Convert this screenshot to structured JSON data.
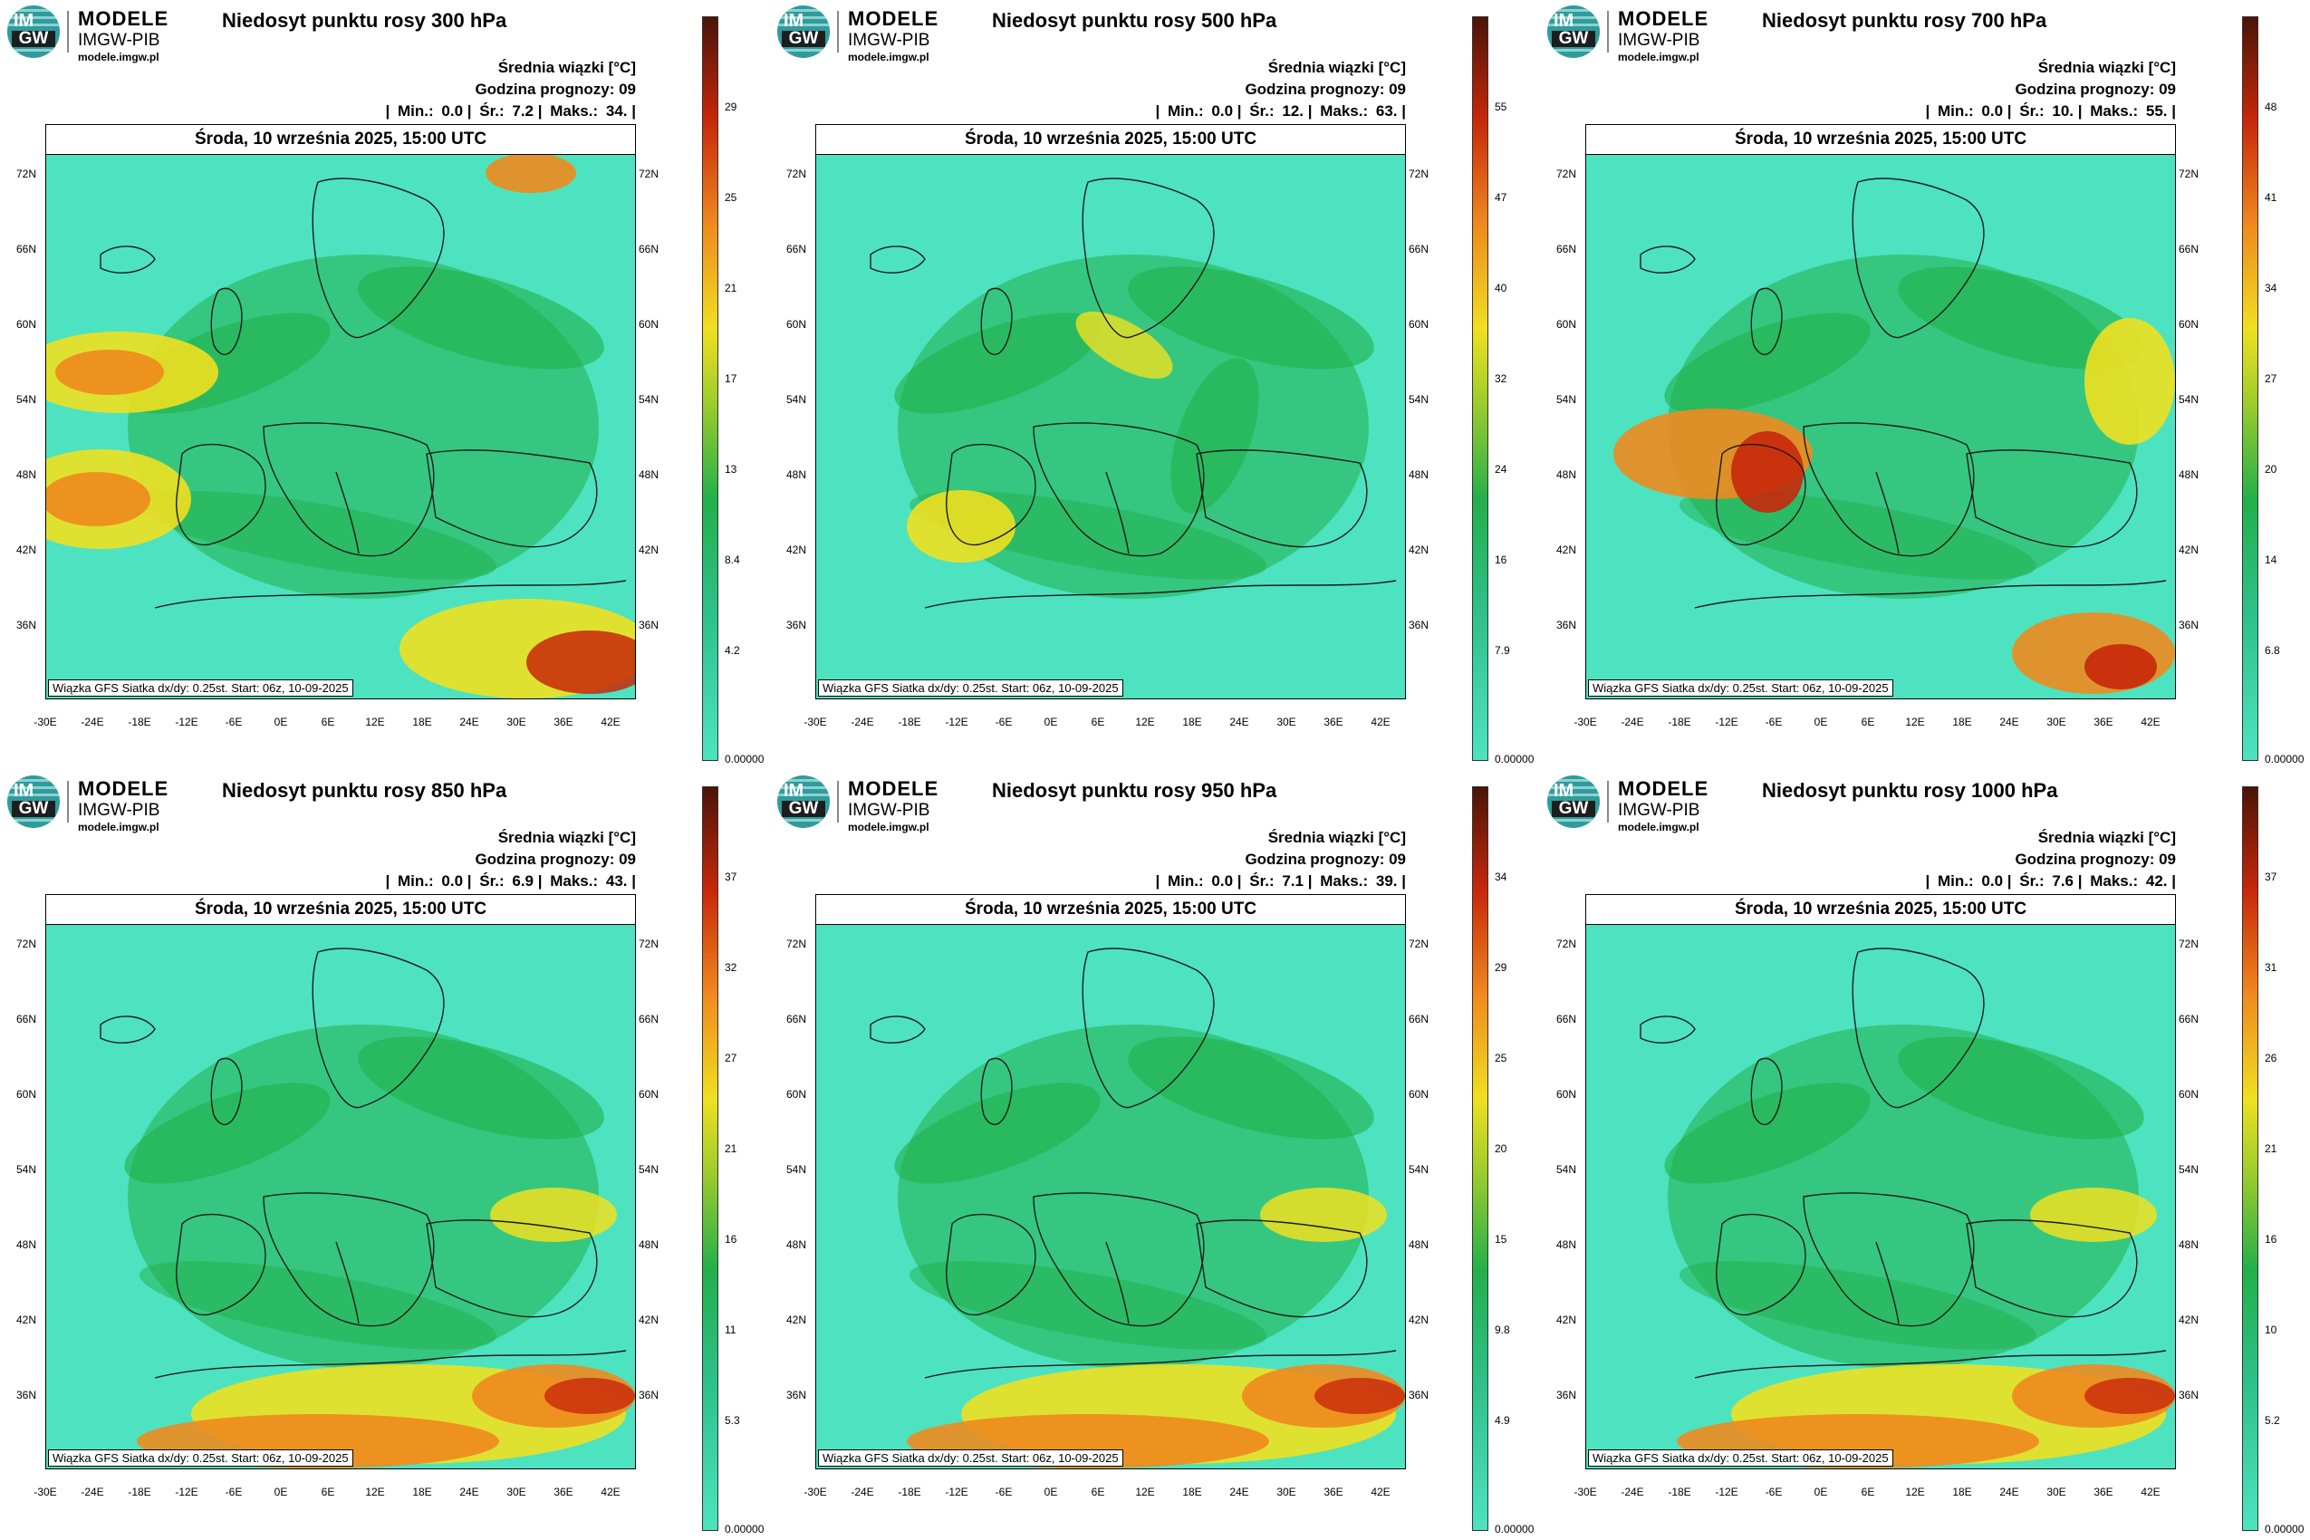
{
  "logo": {
    "line1": "MODELE",
    "line2": "IMGW-PIB",
    "line3": "modele.imgw.pl",
    "circle_top": "IM",
    "circle_bottom": "GW"
  },
  "common": {
    "avg_label": "Średnia wiązki [°C]",
    "forecast_hour": "Godzina prognozy: 09",
    "date_line": "Środa, 10 września 2025, 15:00 UTC",
    "footer": "Wiązka GFS Siatka dx/dy: 0.25st. Start: 06z, 10-09-2025",
    "min_label": "Min.:",
    "avg_short": "Śr.:",
    "max_label": "Maks.:",
    "lat_labels": [
      "72N",
      "66N",
      "60N",
      "54N",
      "48N",
      "42N",
      "36N"
    ],
    "lon_labels": [
      "-30E",
      "-24E",
      "-18E",
      "-12E",
      "-6E",
      "0E",
      "6E",
      "12E",
      "18E",
      "24E",
      "30E",
      "36E",
      "42E"
    ]
  },
  "panels": [
    {
      "title": "Niedosyt punktu rosy 300 hPa",
      "min": "0.0",
      "avg": "7.2",
      "max": "34.",
      "scale": [
        "29",
        "25",
        "21",
        "17",
        "13",
        "8.4",
        "4.2",
        "0.00000"
      ],
      "hot": "west"
    },
    {
      "title": "Niedosyt punktu rosy 500 hPa",
      "min": "0.0",
      "avg": "12.",
      "max": "63.",
      "scale": [
        "55",
        "47",
        "40",
        "32",
        "24",
        "16",
        "7.9",
        "0.00000"
      ],
      "hot": "iberia"
    },
    {
      "title": "Niedosyt punktu rosy 700 hPa",
      "min": "0.0",
      "avg": "10.",
      "max": "55.",
      "scale": [
        "48",
        "41",
        "34",
        "27",
        "20",
        "14",
        "6.8",
        "0.00000"
      ],
      "hot": "biscay"
    },
    {
      "title": "Niedosyt punktu rosy 850 hPa",
      "min": "0.0",
      "avg": "6.9",
      "max": "43.",
      "scale": [
        "37",
        "32",
        "27",
        "21",
        "16",
        "11",
        "5.3",
        "0.00000"
      ],
      "hot": "south"
    },
    {
      "title": "Niedosyt punktu rosy 950 hPa",
      "min": "0.0",
      "avg": "7.1",
      "max": "39.",
      "scale": [
        "34",
        "29",
        "25",
        "20",
        "15",
        "9.8",
        "4.9",
        "0.00000"
      ],
      "hot": "south"
    },
    {
      "title": "Niedosyt punktu rosy 1000 hPa",
      "min": "0.0",
      "avg": "7.6",
      "max": "42.",
      "scale": [
        "37",
        "31",
        "26",
        "21",
        "16",
        "10",
        "5.2",
        "0.00000"
      ],
      "hot": "south"
    }
  ],
  "colors": {
    "low": "#4de3c0",
    "mid": "#22b04a",
    "yellow": "#f0e020",
    "orange": "#f08a1e",
    "red": "#c8280a",
    "dark": "#4a1408"
  }
}
